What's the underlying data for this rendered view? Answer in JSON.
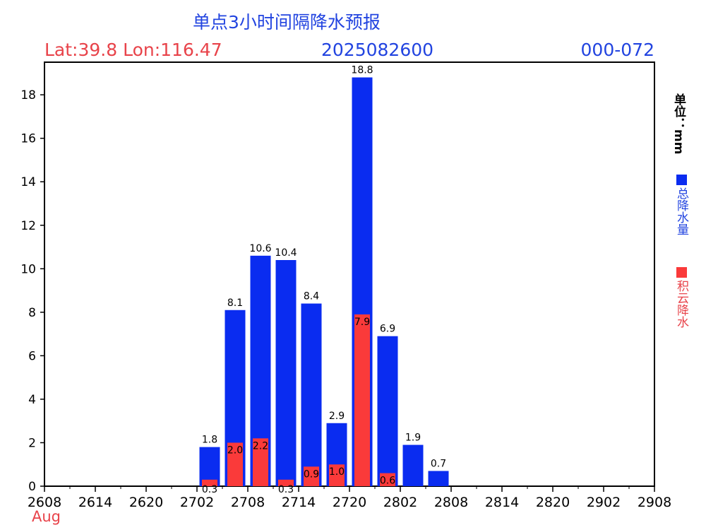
{
  "header": {
    "title": "单点3小时间隔降水预报",
    "latlon": "Lat:39.8 Lon:116.47",
    "init_time": "2025082600",
    "forecast_range": "000-072"
  },
  "side": {
    "unit": "单位：mm",
    "legend_total": "总降水量",
    "legend_conv": "积云降水"
  },
  "colors": {
    "total": "#0a2cf0",
    "convective": "#fa3a3a",
    "axis": "#000000"
  },
  "chart_data": {
    "type": "bar",
    "xlabel": "Aug",
    "x_ticks": [
      "2608",
      "2614",
      "2620",
      "2702",
      "2708",
      "2714",
      "2720",
      "2802",
      "2808",
      "2814",
      "2820",
      "2902",
      "2908"
    ],
    "categories": [
      "2608",
      "2611",
      "2614",
      "2617",
      "2620",
      "2623",
      "2702",
      "2705",
      "2708",
      "2711",
      "2714",
      "2717",
      "2720",
      "2723",
      "2802",
      "2805",
      "2808",
      "2811",
      "2814",
      "2817",
      "2820",
      "2823",
      "2902",
      "2905"
    ],
    "ylim": [
      0,
      19.5
    ],
    "y_ticks": [
      0,
      2,
      4,
      6,
      8,
      10,
      12,
      14,
      16,
      18
    ],
    "series": [
      {
        "name": "总降水量",
        "values": [
          0,
          0,
          0,
          0,
          0,
          0,
          1.8,
          8.1,
          10.6,
          10.4,
          8.4,
          2.9,
          18.8,
          6.9,
          1.9,
          0.7,
          0,
          0,
          0,
          0,
          0,
          0,
          0,
          0
        ]
      },
      {
        "name": "积云降水",
        "values": [
          0,
          0,
          0,
          0,
          0,
          0,
          0.3,
          2.0,
          2.2,
          0.3,
          0.9,
          1.0,
          7.9,
          0.6,
          0,
          0,
          0,
          0,
          0,
          0,
          0,
          0,
          0,
          0
        ]
      }
    ]
  }
}
